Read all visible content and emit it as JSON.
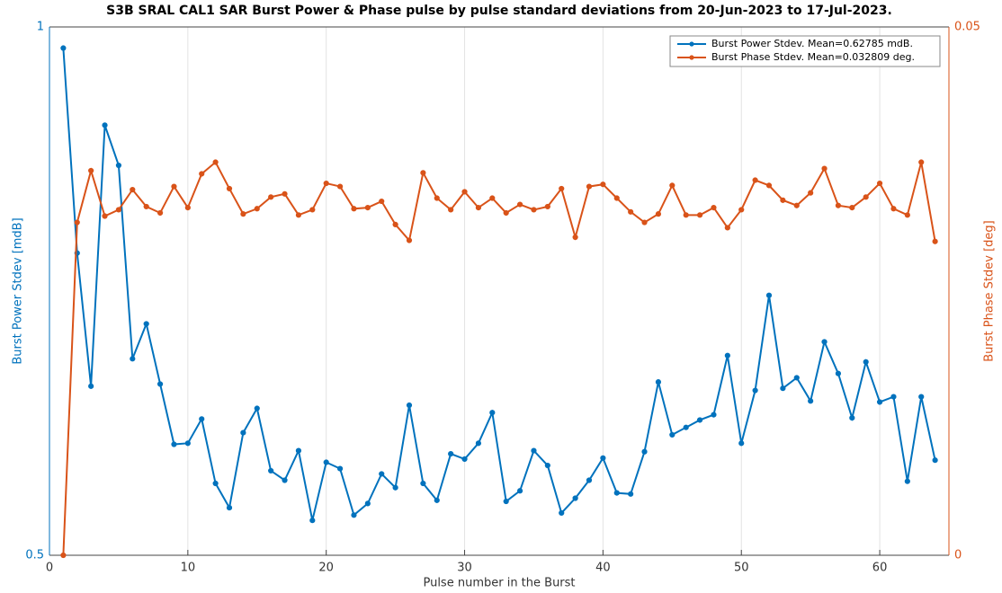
{
  "chart_data": {
    "type": "line",
    "title": "S3B SRAL CAL1 SAR Burst Power & Phase pulse by pulse standard deviations from 20-Jun-2023 to 17-Jul-2023.",
    "xlabel": "Pulse number in the Burst",
    "ylabel": "Burst Power Stdev [mdB]",
    "y2label": "Burst Phase Stdev [deg]",
    "x": [
      1,
      2,
      3,
      4,
      5,
      6,
      7,
      8,
      9,
      10,
      11,
      12,
      13,
      14,
      15,
      16,
      17,
      18,
      19,
      20,
      21,
      22,
      23,
      24,
      25,
      26,
      27,
      28,
      29,
      30,
      31,
      32,
      33,
      34,
      35,
      36,
      37,
      38,
      39,
      40,
      41,
      42,
      43,
      44,
      45,
      46,
      47,
      48,
      49,
      50,
      51,
      52,
      53,
      54,
      55,
      56,
      57,
      58,
      59,
      60,
      61,
      62,
      63,
      64
    ],
    "series": [
      {
        "name": "Burst Power Stdev. Mean=0.62785 mdB.",
        "color": "#0072BD",
        "axis": "y",
        "values": [
          0.98,
          0.786,
          0.66,
          0.907,
          0.869,
          0.686,
          0.719,
          0.662,
          0.605,
          0.606,
          0.629,
          0.568,
          0.545,
          0.616,
          0.639,
          0.58,
          0.571,
          0.599,
          0.533,
          0.588,
          0.582,
          0.538,
          0.549,
          0.577,
          0.564,
          0.642,
          0.568,
          0.552,
          0.596,
          0.591,
          0.606,
          0.635,
          0.551,
          0.561,
          0.599,
          0.585,
          0.54,
          0.554,
          0.571,
          0.592,
          0.559,
          0.558,
          0.598,
          0.664,
          0.614,
          0.621,
          0.628,
          0.633,
          0.689,
          0.606,
          0.656,
          0.746,
          0.658,
          0.668,
          0.646,
          0.702,
          0.672,
          0.63,
          0.683,
          0.645,
          0.65,
          0.57,
          0.65,
          0.59
        ]
      },
      {
        "name": "Burst Phase Stdev. Mean=0.032809 deg.",
        "color": "#D95319",
        "axis": "y2",
        "values": [
          0,
          0.0315,
          0.0364,
          0.0321,
          0.0327,
          0.0346,
          0.033,
          0.0324,
          0.0349,
          0.0329,
          0.0361,
          0.0372,
          0.0347,
          0.0323,
          0.0328,
          0.0339,
          0.0342,
          0.0322,
          0.0327,
          0.0352,
          0.0349,
          0.0328,
          0.0329,
          0.0335,
          0.0313,
          0.0298,
          0.0362,
          0.0338,
          0.0327,
          0.0344,
          0.0329,
          0.0338,
          0.0324,
          0.0332,
          0.0327,
          0.033,
          0.0347,
          0.0301,
          0.0349,
          0.0351,
          0.0338,
          0.0325,
          0.0315,
          0.0323,
          0.035,
          0.0322,
          0.0322,
          0.0329,
          0.031,
          0.0327,
          0.0355,
          0.035,
          0.0336,
          0.0331,
          0.0343,
          0.0366,
          0.0331,
          0.0329,
          0.0339,
          0.0352,
          0.0328,
          0.0322,
          0.0372,
          0.0297
        ]
      }
    ],
    "xlim": [
      0,
      65
    ],
    "xticks": [
      0,
      10,
      20,
      30,
      40,
      50,
      60
    ],
    "ylim": [
      0.5,
      1
    ],
    "yticks": [
      0.5,
      1
    ],
    "y2lim": [
      0,
      0.05
    ],
    "y2ticks": [
      0,
      0.05
    ],
    "grid": true,
    "legend": "top-right"
  }
}
